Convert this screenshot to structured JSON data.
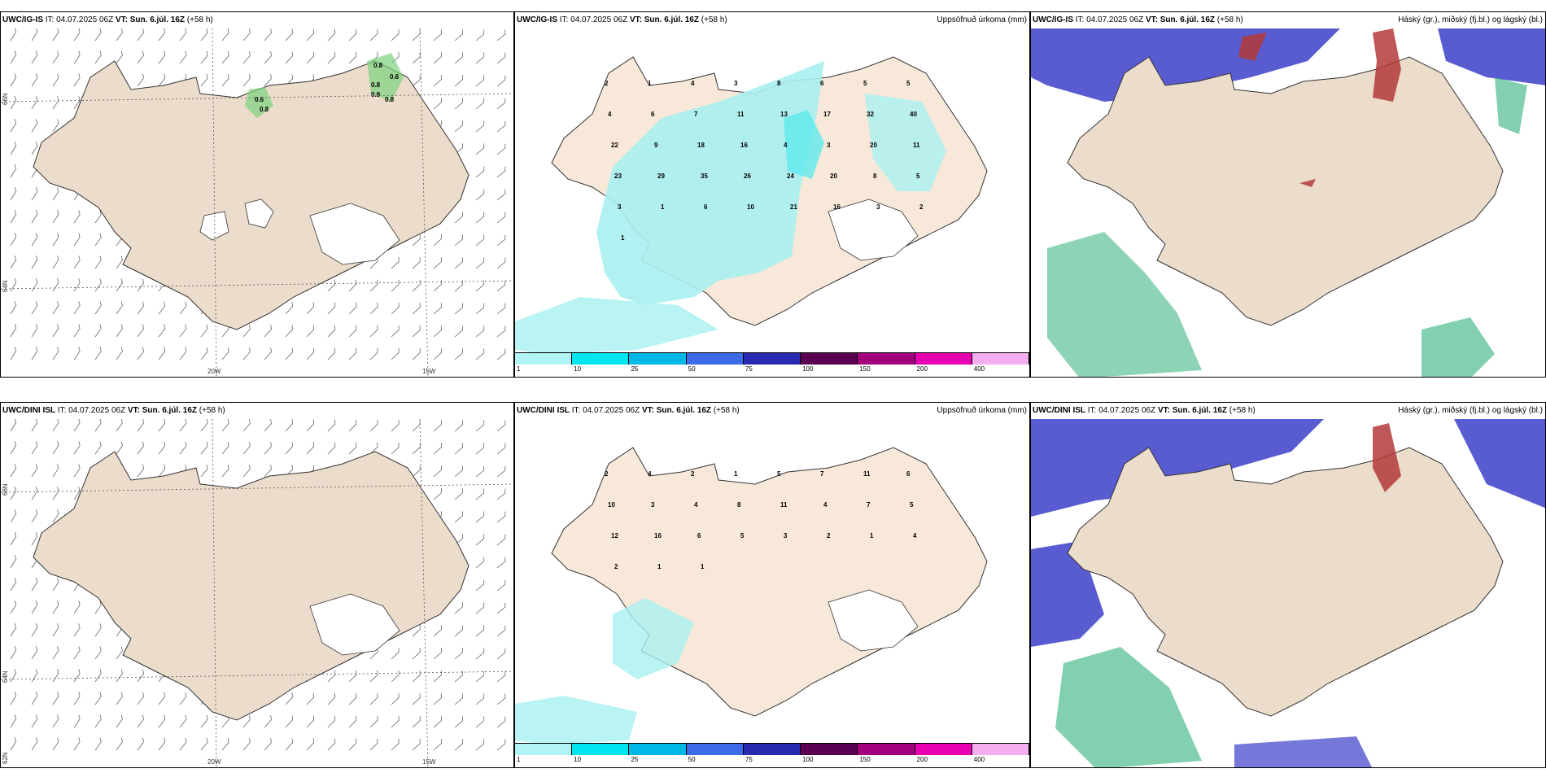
{
  "colors": {
    "land": "#ebdccb",
    "precip_light": "#a9f0f0",
    "precip_mid": "#5fe8ec",
    "high_cloud": "#b33a3a",
    "mid_cloud": "#3b3fc8",
    "low_cloud": "#2fb07a"
  },
  "rows": [
    {
      "model": "UWC/IG-IS",
      "it_label": "IT:",
      "it": "04.07.2025 06Z",
      "vt_label": "VT:",
      "vt": "Sun. 6.júl. 16Z",
      "lead": "(+58 h)",
      "precip_title": "Uppsöfnuð úrkoma (mm)",
      "cloud_title": "Háský (gr.), miðský (fj.bl.) og lágský (bl.)",
      "wind_values": [
        "0.8",
        "0.6",
        "0.8",
        "0.8",
        "0.9",
        "0.8",
        "0.6"
      ]
    },
    {
      "model": "UWC/DINI ISL",
      "it_label": "IT:",
      "it": "04.07.2025 06Z",
      "vt_label": "VT:",
      "vt": "Sun. 6.júl. 16Z",
      "lead": "(+58 h)",
      "precip_title": "Uppsöfnuð úrkoma (mm)",
      "cloud_title": "Háský (gr.), miðský (fj.bl.) og lágský (bl.)",
      "wind_values": []
    }
  ],
  "grid_labels": {
    "lon_20": "20W",
    "lon_15": "15W",
    "lat_66": "66N",
    "lat_64": "64N",
    "lat_62": "62N"
  },
  "colorbar": {
    "ticks": [
      "1",
      "10",
      "25",
      "50",
      "75",
      "100",
      "150",
      "200",
      "400"
    ],
    "colors": [
      "#b0f4f4",
      "#00e6f0",
      "#00b8e6",
      "#3d6ae6",
      "#2a2ab0",
      "#5a0052",
      "#a3007e",
      "#e600b0",
      "#f5aef0"
    ]
  },
  "precip_numbers": {
    "top": [
      "2",
      "1",
      "4",
      "3",
      "8",
      "6",
      "5",
      "5",
      "4",
      "6",
      "7",
      "11",
      "13",
      "17",
      "32",
      "40",
      "22",
      "9",
      "18",
      "16",
      "4",
      "3",
      "20",
      "11",
      "23",
      "29",
      "35",
      "26",
      "24",
      "20",
      "8",
      "5",
      "3",
      "1",
      "6",
      "10",
      "21",
      "16",
      "3",
      "2",
      "1"
    ],
    "bottom": [
      "2",
      "4",
      "2",
      "1",
      "5",
      "7",
      "11",
      "6",
      "10",
      "3",
      "4",
      "8",
      "11",
      "4",
      "7",
      "5",
      "12",
      "16",
      "6",
      "5",
      "3",
      "2",
      "1",
      "4",
      "2",
      "1",
      "1"
    ]
  }
}
